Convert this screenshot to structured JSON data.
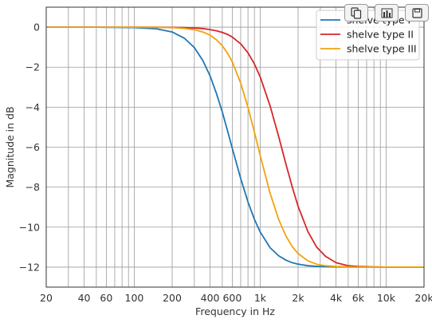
{
  "chart_data": {
    "type": "line",
    "xlabel": "Frequency in Hz",
    "ylabel": "Magnitude in dB",
    "xscale": "log",
    "xlim": [
      20,
      20000
    ],
    "ylim": [
      -13,
      1
    ],
    "grid": true,
    "legend_position": "top-right",
    "x_ticks": [
      20,
      40,
      60,
      100,
      200,
      400,
      600,
      1000,
      2000,
      4000,
      6000,
      10000,
      20000
    ],
    "x_tick_labels": [
      "20",
      "40",
      "60",
      "100",
      "200",
      "400",
      "600",
      "1k",
      "2k",
      "4k",
      "6k",
      "10k",
      "20k"
    ],
    "y_ticks": [
      0,
      -2,
      -4,
      -6,
      -8,
      -10,
      -12
    ],
    "y_tick_labels": [
      "0",
      "−2",
      "−4",
      "−6",
      "−8",
      "−10",
      "−12"
    ],
    "x": [
      20,
      50,
      100,
      150,
      200,
      250,
      300,
      350,
      400,
      450,
      500,
      550,
      600,
      700,
      800,
      900,
      1000,
      1200,
      1400,
      1600,
      1800,
      2000,
      2400,
      2800,
      3300,
      4000,
      5000,
      6000,
      8000,
      10000,
      15000,
      20000
    ],
    "series": [
      {
        "name": "shelve type I",
        "color": "#1f77b4",
        "values": [
          0,
          0,
          -0.02,
          -0.08,
          -0.24,
          -0.55,
          -1.02,
          -1.66,
          -2.44,
          -3.32,
          -4.24,
          -5.17,
          -6.05,
          -7.57,
          -8.74,
          -9.61,
          -10.24,
          -11.03,
          -11.43,
          -11.65,
          -11.78,
          -11.85,
          -11.93,
          -11.96,
          -11.98,
          -11.99,
          -12,
          -12,
          -12,
          -12,
          -12,
          -12
        ]
      },
      {
        "name": "shelve type II",
        "color": "#d62728",
        "values": [
          0,
          0,
          0,
          0,
          -0.01,
          -0.02,
          -0.04,
          -0.07,
          -0.12,
          -0.18,
          -0.26,
          -0.36,
          -0.49,
          -0.83,
          -1.28,
          -1.84,
          -2.48,
          -3.94,
          -5.45,
          -6.84,
          -8.01,
          -8.96,
          -10.24,
          -10.99,
          -11.46,
          -11.78,
          -11.93,
          -11.97,
          -11.99,
          -12,
          -12,
          -12
        ]
      },
      {
        "name": "shelve type III",
        "color": "#f0a30a",
        "values": [
          0,
          0,
          0,
          -0.01,
          -0.02,
          -0.06,
          -0.13,
          -0.24,
          -0.4,
          -0.63,
          -0.93,
          -1.3,
          -1.73,
          -2.8,
          -4.01,
          -5.25,
          -6.41,
          -8.31,
          -9.6,
          -10.44,
          -10.98,
          -11.32,
          -11.69,
          -11.85,
          -11.93,
          -11.97,
          -11.99,
          -12,
          -12,
          -12,
          -12,
          -12
        ]
      }
    ]
  },
  "toolbar": {
    "icons": [
      "copy-icon",
      "chart-icon",
      "save-icon"
    ]
  }
}
